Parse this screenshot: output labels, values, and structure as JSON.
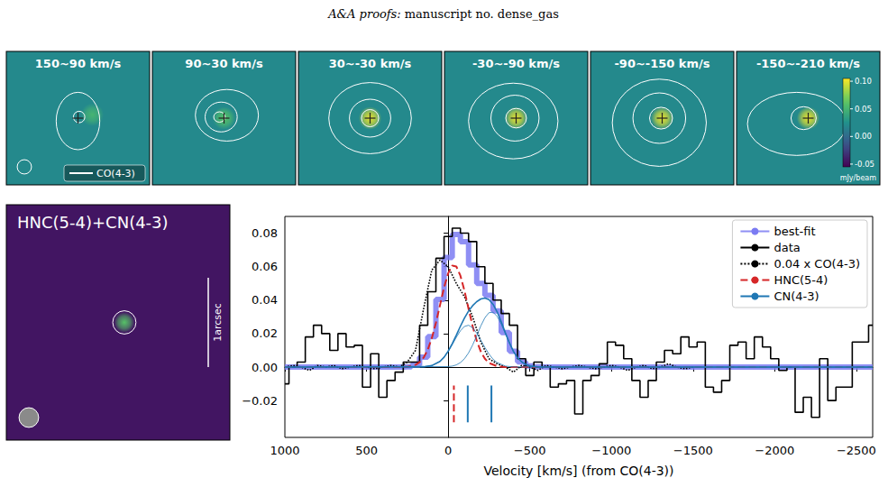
{
  "header": [
    "A&A proofs:",
    "manuscript no. dense_gas"
  ],
  "channel_maps": {
    "field_arcsec": 2.5,
    "background_level": 0.02,
    "beam_arcsec": 0.25,
    "beam_legend": "CO(4-3)",
    "panels": [
      {
        "title": "150~90 km/s",
        "peak": 0.05,
        "source": [
          0.25,
          0.06
        ],
        "contours": [
          [
            0.0,
            -0.05,
            0.38,
            0.5
          ],
          [
            0.02,
            0.02,
            0.1,
            0.1
          ]
        ]
      },
      {
        "title": "90~30 km/s",
        "peak": 0.06,
        "source": [
          0.0,
          0.0
        ],
        "contours": [
          [
            0.05,
            0.05,
            0.55,
            0.45
          ],
          [
            -0.05,
            0.02,
            0.28,
            0.26
          ],
          [
            -0.08,
            0.02,
            0.1,
            0.09
          ]
        ]
      },
      {
        "title": "30~-30 km/s",
        "peak": 0.1,
        "source": [
          0.0,
          0.0
        ],
        "contours": [
          [
            0.0,
            0.0,
            0.72,
            0.62
          ],
          [
            0.0,
            0.0,
            0.36,
            0.33
          ],
          [
            0.0,
            0.0,
            0.15,
            0.15
          ]
        ]
      },
      {
        "title": "-30~-90 km/s",
        "peak": 0.1,
        "source": [
          0.0,
          0.0
        ],
        "contours": [
          [
            -0.05,
            -0.05,
            0.78,
            0.66
          ],
          [
            -0.02,
            0.0,
            0.42,
            0.4
          ],
          [
            0.0,
            0.0,
            0.18,
            0.17
          ]
        ]
      },
      {
        "title": "-90~-150 km/s",
        "peak": 0.1,
        "source": [
          0.0,
          0.0
        ],
        "contours": [
          [
            -0.05,
            -0.08,
            0.82,
            0.76
          ],
          [
            -0.05,
            0.0,
            0.46,
            0.44
          ],
          [
            -0.02,
            0.0,
            0.2,
            0.19
          ]
        ]
      },
      {
        "title": "-150~-210 km/s",
        "peak": 0.1,
        "source": [
          0.0,
          0.0
        ],
        "contours": [
          [
            -0.2,
            -0.1,
            0.86,
            0.55
          ],
          [
            -0.08,
            0.0,
            0.22,
            0.2
          ]
        ]
      }
    ],
    "colorbar": {
      "range": [
        -0.055,
        0.105
      ],
      "ticks": [
        {
          "value": 0.1,
          "label": "0.10"
        },
        {
          "value": 0.05,
          "label": "0.05"
        },
        {
          "value": 0,
          "label": "0.00"
        },
        {
          "value": -0.05,
          "label": "-0.05"
        }
      ],
      "label": "mJy/beam"
    }
  },
  "moment_map": {
    "title": "HNC(5-4)+CN(4-3)",
    "field_arcsec": 2.5,
    "background_level": -0.045,
    "peak": 0.06,
    "source_offset": [
      0.07,
      0.0
    ],
    "aperture_radius_arcsec": 0.13,
    "scale_bar_arcsec": 1,
    "scale_bar_label": "1arcsec",
    "beam_arcsec": 0.22
  },
  "chart_data": {
    "type": "line",
    "xlabel": "Velocity [km/s] (from CO(4-3))",
    "xlim": [
      1000,
      -2600
    ],
    "xticks": [
      1000,
      500,
      0,
      {
        "value": -500,
        "label": "−500"
      },
      {
        "value": -1000,
        "label": "−1000"
      },
      {
        "value": -1500,
        "label": "−1500"
      },
      {
        "value": -2000,
        "label": "−2000"
      },
      {
        "value": -2500,
        "label": "−2500"
      }
    ],
    "ylim": [
      -0.042,
      0.09
    ],
    "yticks": [
      {
        "value": -0.02,
        "label": "−0.02"
      },
      {
        "value": 0,
        "label": "0.00"
      },
      {
        "value": 0.02,
        "label": "0.02"
      },
      {
        "value": 0.04,
        "label": "0.04"
      },
      {
        "value": 0.06,
        "label": "0.06"
      },
      {
        "value": 0.08,
        "label": "0.08"
      }
    ],
    "grid": false,
    "legend": "upper right",
    "series": [
      {
        "name": "best-fit",
        "color": "#7b7bf2",
        "line_style": "bold",
        "x": [
          1000,
          350,
          300,
          250,
          200,
          150,
          100,
          50,
          0,
          -50,
          -100,
          -150,
          -200,
          -250,
          -300,
          -350,
          -400,
          -450,
          -500,
          -550,
          -600,
          -2600
        ],
        "values": [
          0,
          0,
          0,
          0.0002,
          0.0013,
          0.0059,
          0.0182,
          0.0404,
          0.0655,
          0.0792,
          0.0749,
          0.0611,
          0.05,
          0.0428,
          0.0335,
          0.0206,
          0.0094,
          0.0031,
          0.0007,
          0.0001,
          0,
          0
        ]
      },
      {
        "name": "data",
        "color": "#000000",
        "line_style": "steps",
        "x": [
          1000,
          950,
          900,
          850,
          800,
          750,
          700,
          650,
          600,
          550,
          500,
          450,
          400,
          350,
          300,
          250,
          200,
          150,
          100,
          50,
          0,
          -50,
          -100,
          -150,
          -200,
          -250,
          -300,
          -350,
          -400,
          -450,
          -500,
          -550,
          -600,
          -650,
          -700,
          -750,
          -800,
          -850,
          -900,
          -950,
          -1000,
          -1050,
          -1100,
          -1150,
          -1200,
          -1250,
          -1300,
          -1350,
          -1400,
          -1450,
          -1500,
          -1550,
          -1600,
          -1650,
          -1700,
          -1750,
          -1800,
          -1850,
          -1900,
          -1950,
          -2000,
          -2050,
          -2100,
          -2150,
          -2200,
          -2250,
          -2300,
          -2350,
          -2400,
          -2450,
          -2500,
          -2550,
          -2600
        ],
        "values": [
          -0.01,
          0.0,
          0.003,
          0.018,
          0.025,
          0.02,
          0.01,
          0.02,
          0.012,
          0.013,
          -0.012,
          0.008,
          -0.018,
          -0.008,
          -0.003,
          0.003,
          0.003,
          0.025,
          0.045,
          0.065,
          0.078,
          0.083,
          0.08,
          0.075,
          0.06,
          0.05,
          0.04,
          0.032,
          0.025,
          0.005,
          -0.005,
          0.003,
          0.0,
          -0.012,
          -0.01,
          -0.008,
          -0.028,
          -0.008,
          -0.005,
          0.002,
          0.015,
          0.013,
          0.005,
          -0.008,
          -0.018,
          -0.008,
          0.003,
          0.01,
          0.008,
          0.018,
          0.012,
          0.015,
          -0.012,
          -0.015,
          -0.008,
          0.013,
          0.015,
          0.005,
          0.018,
          0.012,
          0.005,
          -0.002,
          0.0,
          -0.027,
          -0.018,
          -0.03,
          0.005,
          -0.02,
          -0.012,
          -0.012,
          0.015,
          0.015,
          0.025
        ]
      },
      {
        "name": "0.04 x CO(4-3)",
        "color": "#000000",
        "line_style": "dotted",
        "x": [
          1000,
          950,
          900,
          850,
          800,
          750,
          700,
          650,
          600,
          550,
          500,
          450,
          400,
          350,
          300,
          250,
          200,
          150,
          100,
          50,
          0,
          -50,
          -100,
          -150,
          -200,
          -250,
          -300,
          -350,
          -400,
          -450,
          -500,
          -550,
          -600,
          -650,
          -700,
          -750,
          -800,
          -850,
          -900,
          -950,
          -1000,
          -1050,
          -1100,
          -1150,
          -1200,
          -1250,
          -1300,
          -1350,
          -1400,
          -1450,
          -1500
        ],
        "values": [
          0.0,
          0.001,
          0.0,
          -0.002,
          0.001,
          0.0,
          0.001,
          -0.001,
          0.0,
          0.001,
          0.0,
          -0.001,
          0.0,
          0.001,
          0.0,
          0.003,
          0.01,
          0.035,
          0.058,
          0.064,
          0.06,
          0.05,
          0.042,
          0.03,
          0.015,
          0.005,
          0.002,
          0.0,
          -0.003,
          0.001,
          0.0,
          -0.002,
          0.001,
          0.0,
          -0.001,
          0.0,
          0.001,
          0.0,
          -0.001,
          0.0,
          0.001,
          0.0,
          -0.002,
          0.0,
          0.001,
          -0.001,
          0.0,
          0.002,
          0.0,
          -0.001,
          0.0
        ]
      },
      {
        "name": "HNC(5-4)",
        "color": "#d62728",
        "line_style": "dashed",
        "x": [
          1000,
          300,
          250,
          200,
          175,
          150,
          125,
          100,
          75,
          50,
          25,
          0,
          -25,
          -50,
          -75,
          -100,
          -125,
          -150,
          -175,
          -200,
          -225,
          -250,
          -300,
          -350,
          -2600
        ],
        "values": [
          0,
          0,
          0.0002,
          0.0013,
          0.0029,
          0.0057,
          0.0104,
          0.0173,
          0.0264,
          0.037,
          0.0476,
          0.056,
          0.0606,
          0.0601,
          0.0546,
          0.0456,
          0.0348,
          0.0244,
          0.0157,
          0.0093,
          0.005,
          0.0025,
          0.0005,
          0,
          0
        ]
      },
      {
        "name": "CN(4-3)",
        "color": "#1f77b4",
        "line_style": "solid",
        "x": [
          1000,
          150,
          100,
          50,
          25,
          0,
          -25,
          -50,
          -75,
          -100,
          -125,
          -150,
          -175,
          -200,
          -225,
          -250,
          -275,
          -300,
          -325,
          -350,
          -375,
          -400,
          -425,
          -450,
          -475,
          -500,
          -550,
          -2600
        ],
        "values": [
          0,
          0.0002,
          0.0009,
          0.0034,
          0.0059,
          0.0095,
          0.014,
          0.0191,
          0.0244,
          0.0293,
          0.0335,
          0.0367,
          0.0391,
          0.0407,
          0.0412,
          0.0403,
          0.0375,
          0.033,
          0.0271,
          0.0206,
          0.0146,
          0.0094,
          0.0056,
          0.0031,
          0.0016,
          0.0007,
          0.0001,
          0
        ]
      },
      {
        "color": "#1f77b4",
        "line_style": "thin",
        "x": [
          1000,
          150,
          100,
          50,
          25,
          0,
          -25,
          -50,
          -75,
          -100,
          -125,
          -150,
          -175,
          -200,
          -225,
          -250,
          -275,
          -300,
          -350,
          -400,
          -2600
        ],
        "values": [
          0,
          0.0002,
          0.0009,
          0.0034,
          0.0058,
          0.0092,
          0.0134,
          0.0178,
          0.0217,
          0.0243,
          0.025,
          0.0235,
          0.0203,
          0.0161,
          0.0117,
          0.0078,
          0.0047,
          0.0027,
          0.0006,
          0.0001,
          0
        ]
      },
      {
        "color": "#1f77b4",
        "line_style": "thin",
        "x": [
          1000,
          0,
          -25,
          -50,
          -75,
          -100,
          -125,
          -150,
          -175,
          -200,
          -225,
          -250,
          -275,
          -300,
          -325,
          -350,
          -375,
          -400,
          -425,
          -450,
          -475,
          -500,
          -550,
          -2600
        ],
        "values": [
          0,
          0.0003,
          0.0006,
          0.0013,
          0.0027,
          0.005,
          0.0085,
          0.0132,
          0.0188,
          0.0246,
          0.0295,
          0.0325,
          0.0328,
          0.0303,
          0.0257,
          0.02,
          0.0143,
          0.0093,
          0.0056,
          0.0031,
          0.0016,
          0.0007,
          0.0001,
          0
        ]
      }
    ],
    "line_centers": {
      "y": [
        -0.033,
        -0.011
      ],
      "items": [
        {
          "x": -35,
          "color": "#d62728",
          "line_style": "dashed"
        },
        {
          "x": -120,
          "color": "#1f77b4",
          "line_style": "solid"
        },
        {
          "x": -265,
          "color": "#1f77b4",
          "line_style": "solid"
        }
      ]
    }
  }
}
